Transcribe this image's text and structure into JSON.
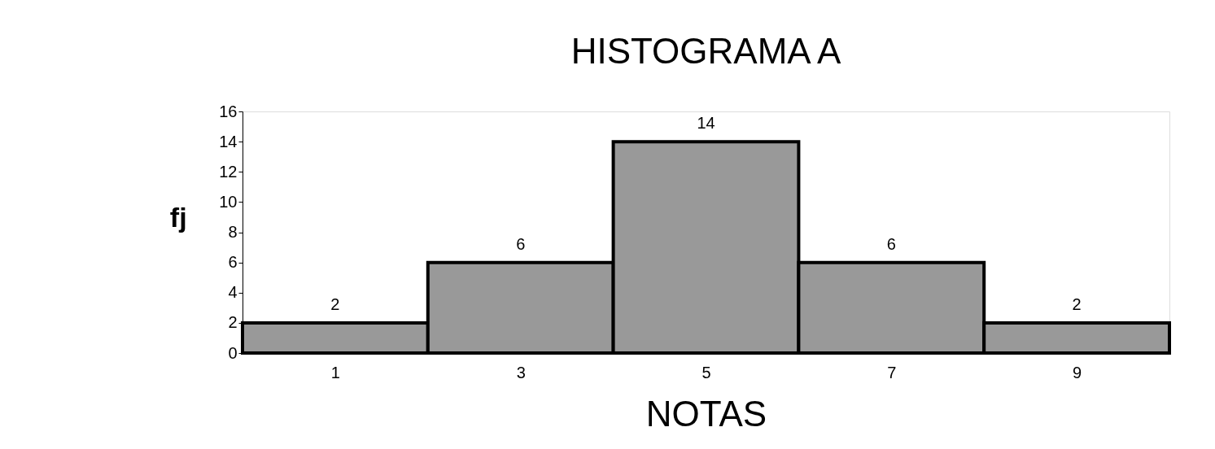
{
  "chart_data": {
    "type": "histogram",
    "title": "HISTOGRAMA A",
    "xlabel": "NOTAS",
    "ylabel": "fj",
    "bins": [
      0,
      2,
      4,
      6,
      8,
      10
    ],
    "values": [
      2,
      6,
      14,
      6,
      2
    ],
    "color": "#999999",
    "xlim": [
      0,
      10
    ],
    "xticks": [
      1,
      3,
      5,
      7,
      9
    ],
    "ylim": [
      0,
      16
    ],
    "yticks": [
      0,
      2,
      4,
      6,
      8,
      10,
      12,
      14,
      16
    ],
    "data_labels": true,
    "grid": false
  }
}
